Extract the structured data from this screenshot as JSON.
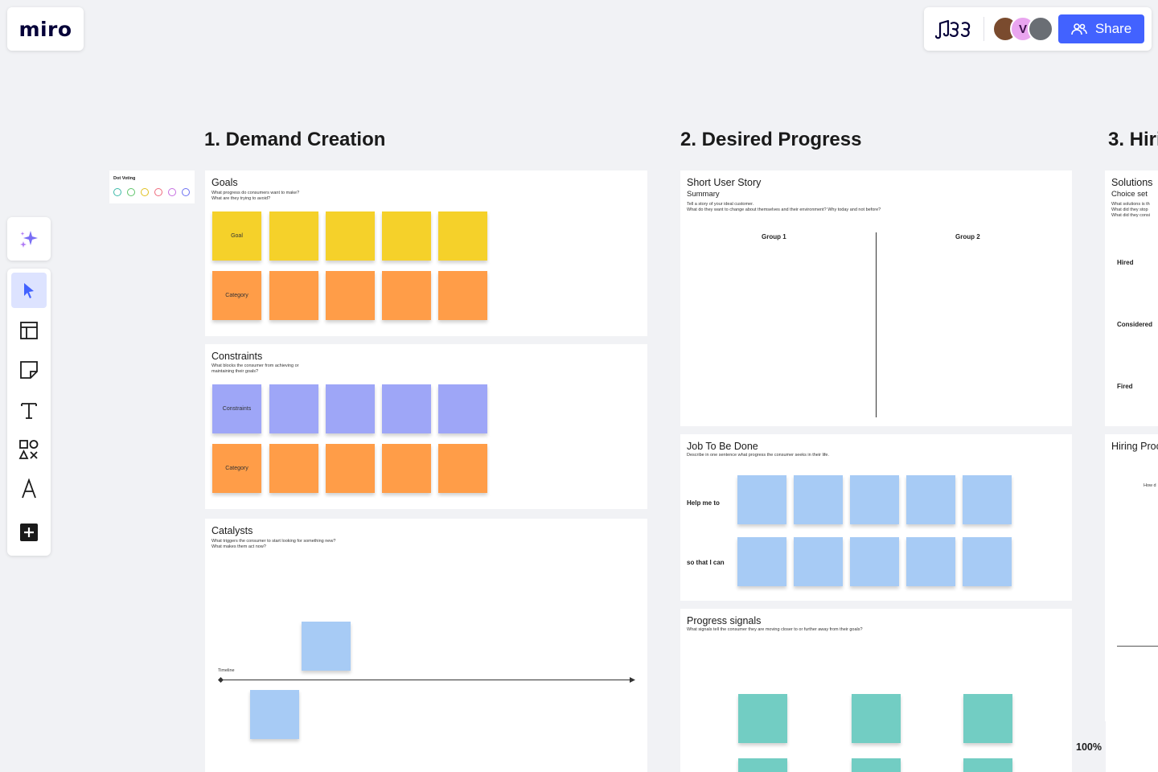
{
  "app": {
    "logo": "miro"
  },
  "toolbar": {
    "avatars": [
      "",
      "V",
      ""
    ],
    "share_label": "Share"
  },
  "zoom": "100%",
  "sections": [
    {
      "title": "1. Demand Creation"
    },
    {
      "title": "2. Desired Progress"
    },
    {
      "title": "3. Hiri"
    }
  ],
  "dot_voting": {
    "title": "Dot Voting",
    "colors": [
      "#3cb9a8",
      "#5ec46a",
      "#e0c01e",
      "#ee6a7c",
      "#c66ee0",
      "#6b70f2"
    ]
  },
  "goals": {
    "title": "Goals",
    "desc1": "What progress do consumers want to make?",
    "desc2": "What are they trying to avoid?",
    "goal_label": "Goal",
    "category_label": "Category"
  },
  "constraints": {
    "title": "Constraints",
    "desc1": "What blocks the consumer from achieving or",
    "desc2": "maintaining their goals?",
    "constraint_label": "Constraints",
    "category_label": "Category"
  },
  "catalysts": {
    "title": "Catalysts",
    "desc1": "What triggers the consumer to start looking for something new?",
    "desc2": "What makes them act now?",
    "timeline_label": "Timeline"
  },
  "user_story": {
    "title": "Short User Story",
    "subtitle": "Summary",
    "desc1": "Tell a story of your ideal customer.",
    "desc2": "What do they want to change about themselves and their environment? Why today and not before?",
    "group1": "Group 1",
    "group2": "Group 2"
  },
  "jtbd": {
    "title": "Job To Be Done",
    "desc1": "Describe in one sentence what progress the consumer seeks in their life.",
    "row1": "Help me to",
    "row2": "so that I can"
  },
  "progress_signals": {
    "title": "Progress signals",
    "desc1": "What signals tell the consumer they are moving closer to or further away from their goals?"
  },
  "solutions": {
    "title": "Solutions",
    "subtitle": "Choice set",
    "desc1": "What solutions is th",
    "desc2": "What did they stop",
    "desc3": "What did they consi",
    "hired": "Hired",
    "considered": "Considered",
    "fired": "Fired"
  },
  "hiring": {
    "title": "Hiring Proc",
    "desc1": "How d"
  }
}
